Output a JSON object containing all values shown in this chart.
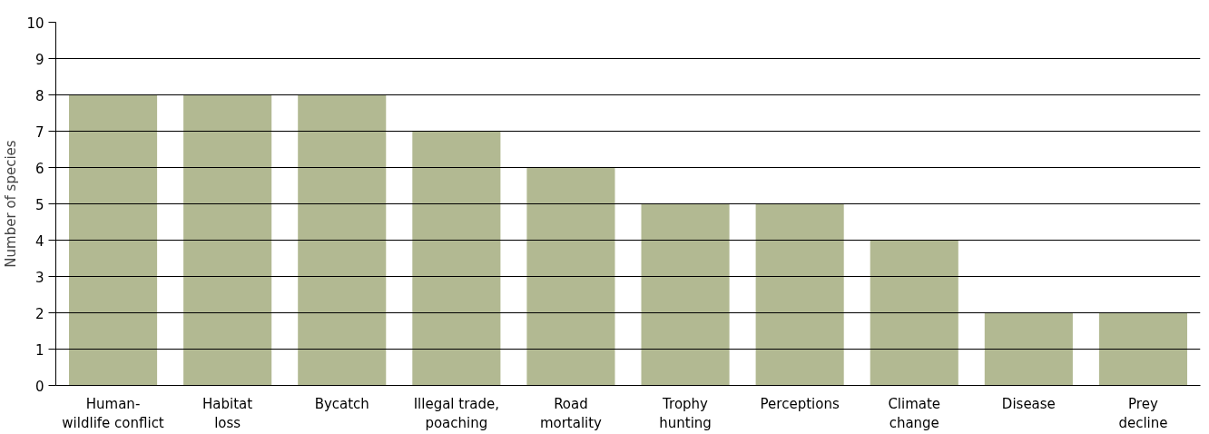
{
  "chart_data": {
    "type": "bar",
    "ylabel": "Number of species",
    "categories": [
      "Human-\nwildlife conflict",
      "Habitat\nloss",
      "Bycatch",
      "Illegal trade,\npoaching",
      "Road\nmortality",
      "Trophy\nhunting",
      "Perceptions",
      "Climate\nchange",
      "Disease",
      "Prey\ndecline"
    ],
    "values": [
      8,
      8,
      8,
      7,
      6,
      5,
      5,
      4,
      2,
      2
    ],
    "color": "#b2b992",
    "ylim": [
      0,
      10
    ],
    "yticks": [
      0,
      1,
      2,
      3,
      4,
      5,
      6,
      7,
      8,
      9,
      10
    ],
    "grid": "y"
  }
}
